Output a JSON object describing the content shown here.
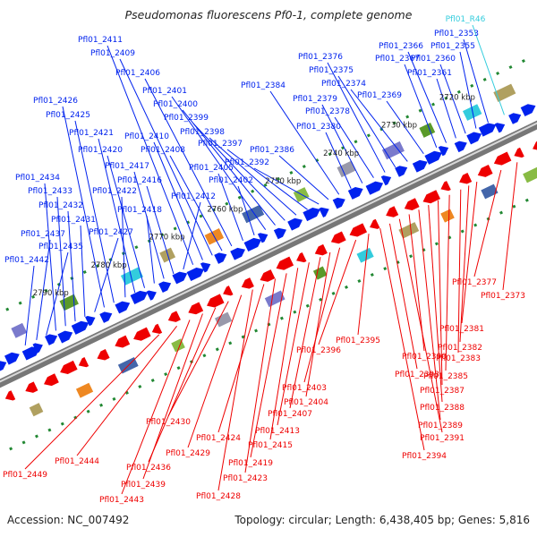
{
  "title": "Pseudomonas fluorescens Pf0-1, complete genome",
  "footer": {
    "accession": "Accession: NC_007492",
    "summary": "Topology: circular; Length: 6,438,405 bp; Genes: 5,816"
  },
  "colors": {
    "forward_strand": "#0022ee",
    "reverse_strand": "#ee0000",
    "rna_gene": "#33ccdd",
    "backbone": "#777777",
    "tick": "#228833"
  },
  "axis_ticks": [
    "2720 kbp",
    "2730 kbp",
    "2740 kbp",
    "2750 kbp",
    "2760 kbp",
    "2770 kbp",
    "2780 kbp",
    "2790 kbp"
  ],
  "top_labels": [
    "Pfl01_R46",
    "Pfl01_2353",
    "Pfl01_2355",
    "Pfl01_2360",
    "Pfl01_2361",
    "Pfl01_2366",
    "Pfl01_2367",
    "Pfl01_2369",
    "Pfl01_2374",
    "Pfl01_2375",
    "Pfl01_2376",
    "Pfl01_2378",
    "Pfl01_2379",
    "Pfl01_2380",
    "Pfl01_2384",
    "Pfl01_2386",
    "Pfl01_2392",
    "Pfl01_2397",
    "Pfl01_2398",
    "Pfl01_2399",
    "Pfl01_2400",
    "Pfl01_2401",
    "Pfl01_2402",
    "Pfl01_2405",
    "Pfl01_2406",
    "Pfl01_2408",
    "Pfl01_2409",
    "Pfl01_2410",
    "Pfl01_2411",
    "Pfl01_2412",
    "Pfl01_2416",
    "Pfl01_2417",
    "Pfl01_2418",
    "Pfl01_2420",
    "Pfl01_2421",
    "Pfl01_2422",
    "Pfl01_2425",
    "Pfl01_2426",
    "Pfl01_2427",
    "Pfl01_2431",
    "Pfl01_2432",
    "Pfl01_2433",
    "Pfl01_2434",
    "Pfl01_2435",
    "Pfl01_2437",
    "Pfl01_2442"
  ],
  "bottom_labels": [
    "Pfl01_2373",
    "Pfl01_2377",
    "Pfl01_2381",
    "Pfl01_2382",
    "Pfl01_2383",
    "Pfl01_2385",
    "Pfl01_2387",
    "Pfl01_2388",
    "Pfl01_2389",
    "Pfl01_2390",
    "Pfl01_2391",
    "Pfl01_2393",
    "Pfl01_2394",
    "Pfl01_2395",
    "Pfl01_2396",
    "Pfl01_2403",
    "Pfl01_2404",
    "Pfl01_2407",
    "Pfl01_2413",
    "Pfl01_2415",
    "Pfl01_2419",
    "Pfl01_2423",
    "Pfl01_2424",
    "Pfl01_2428",
    "Pfl01_2429",
    "Pfl01_2430",
    "Pfl01_2436",
    "Pfl01_2439",
    "Pfl01_2443",
    "Pfl01_2444",
    "Pfl01_2449"
  ]
}
